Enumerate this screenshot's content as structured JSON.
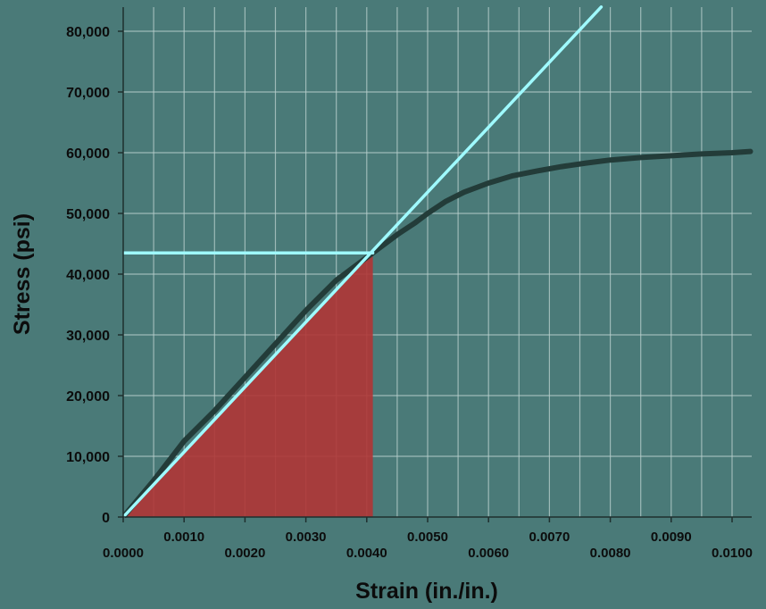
{
  "chart_data": {
    "type": "line",
    "title": "",
    "xlabel": "Strain (in./in.)",
    "ylabel": "Stress (psi)",
    "xlim": [
      0,
      0.0103
    ],
    "ylim": [
      0,
      80000
    ],
    "grid": true,
    "x_ticks": [
      0,
      0.001,
      0.002,
      0.003,
      0.004,
      0.005,
      0.006,
      0.007,
      0.008,
      0.009,
      0.01
    ],
    "x_tick_labels": [
      "0.0000",
      "0.0010",
      "0.0020",
      "0.0030",
      "0.0040",
      "0.0050",
      "0.0060",
      "0.0070",
      "0.0080",
      "0.0090",
      "0.0100"
    ],
    "y_ticks": [
      0,
      10000,
      20000,
      30000,
      40000,
      50000,
      60000,
      70000,
      80000
    ],
    "y_tick_labels": [
      "0",
      "10,000",
      "20,000",
      "30,000",
      "40,000",
      "50,000",
      "60,000",
      "70,000",
      "80,000"
    ],
    "series": [
      {
        "role": "stress-strain-curve",
        "color": "#233c39",
        "x": [
          0,
          0.0005,
          0.001,
          0.0015,
          0.002,
          0.0025,
          0.003,
          0.0035,
          0.0041,
          0.0045,
          0.0048,
          0.005,
          0.0053,
          0.0056,
          0.006,
          0.0064,
          0.0068,
          0.0072,
          0.0076,
          0.008,
          0.0085,
          0.009,
          0.0095,
          0.01,
          0.0103
        ],
        "y": [
          0,
          6000,
          12500,
          17500,
          23000,
          28500,
          34000,
          39000,
          43500,
          46500,
          48500,
          50000,
          52000,
          53500,
          55000,
          56200,
          57000,
          57700,
          58300,
          58800,
          59200,
          59500,
          59800,
          60000,
          60200
        ]
      },
      {
        "role": "elastic-line",
        "color": "#9ffaff",
        "x": [
          0,
          0.00785
        ],
        "y": [
          0,
          84000
        ]
      },
      {
        "role": "proportional-limit-line",
        "color": "#9ffaff",
        "x": [
          0,
          0.0041
        ],
        "y": [
          43500,
          43500
        ]
      }
    ],
    "shaded_area": {
      "role": "modulus-of-resilience",
      "color": "#b03535",
      "x": [
        0,
        0.0041
      ],
      "y": [
        0,
        43500
      ]
    }
  }
}
